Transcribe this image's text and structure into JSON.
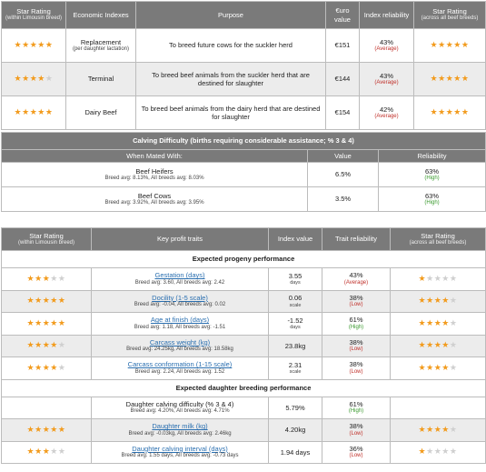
{
  "table1": {
    "headers": {
      "star_rating": "Star Rating",
      "star_rating_sub": "(within Limousin breed)",
      "indexes": "Economic Indexes",
      "purpose": "Purpose",
      "value": "€uro value",
      "reliability": "Index reliability",
      "star_all": "Star Rating",
      "star_all_sub": "(across all beef breeds)"
    },
    "rows": [
      {
        "stars_within": 5,
        "index": "Replacement",
        "index_sub": "(per daughter lactation)",
        "purpose": "To breed future cows for the suckler herd",
        "value": "€151",
        "reliability": "43%",
        "reliability_label": "(Average)",
        "stars_all": 5
      },
      {
        "stars_within": 4,
        "index": "Terminal",
        "index_sub": "",
        "purpose": "To breed beef animals from the suckler herd that are destined for slaughter",
        "value": "€144",
        "reliability": "43%",
        "reliability_label": "(Average)",
        "stars_all": 5
      },
      {
        "stars_within": 5,
        "index": "Dairy Beef",
        "index_sub": "",
        "purpose": "To breed beef animals from the dairy herd that are destined for slaughter",
        "value": "€154",
        "reliability": "42%",
        "reliability_label": "(Average)",
        "stars_all": 5
      }
    ]
  },
  "table2": {
    "title": "Calving Difficulty (births requiring considerable assistance; % 3 & 4)",
    "headers": {
      "mated": "When Mated With:",
      "value": "Value",
      "reliability": "Reliability"
    },
    "rows": [
      {
        "label": "Beef Heifers",
        "sub": "Breed avg: 8.13%, All breeds avg: 8.03%",
        "value": "6.5%",
        "reliability": "63%",
        "reliability_label": "(High)"
      },
      {
        "label": "Beef Cows",
        "sub": "Breed avg: 3.92%, All breeds avg: 3.95%",
        "value": "3.5%",
        "reliability": "63%",
        "reliability_label": "(High)"
      }
    ]
  },
  "table3": {
    "headers": {
      "star_rating": "Star Rating",
      "star_rating_sub": "(within Limousin breed)",
      "traits": "Key profit traits",
      "value": "Index value",
      "reliability": "Trait reliability",
      "star_all": "Star Rating",
      "star_all_sub": "(across all beef breeds)"
    },
    "section_progeny": "Expected progeny performance",
    "section_daughter": "Expected daughter breeding performance",
    "progeny_rows": [
      {
        "stars_within": 3,
        "trait": "Gestation (days)",
        "link": true,
        "sub": "Breed avg: 3.60, All breeds avg: 2.42",
        "value": "3.55",
        "unit": "days",
        "reliability": "43%",
        "reliability_label": "(Average)",
        "rel_class": "avg",
        "stars_all": 1
      },
      {
        "stars_within": 5,
        "trait": "Docility (1-5 scale)",
        "link": true,
        "sub": "Breed avg: -0.04, All breeds avg: 0.02",
        "value": "0.06",
        "unit": "scale",
        "reliability": "38%",
        "reliability_label": "(Low)",
        "rel_class": "low",
        "stars_all": 4
      },
      {
        "stars_within": 5,
        "trait": "Age at finish (days)",
        "link": true,
        "sub": "Breed avg: 1.18, All breeds avg: -1.51",
        "value": "-1.52",
        "unit": "days",
        "reliability": "61%",
        "reliability_label": "(High)",
        "rel_class": "high",
        "stars_all": 4
      },
      {
        "stars_within": 4,
        "trait": "Carcass weight (kg)",
        "link": true,
        "sub": "Breed avg: 24.25kg, All breeds avg: 18.58kg",
        "value": "23.8kg",
        "unit": "",
        "reliability": "38%",
        "reliability_label": "(Low)",
        "rel_class": "low",
        "stars_all": 4
      },
      {
        "stars_within": 4,
        "trait": "Carcass conformation (1-15 scale)",
        "link": true,
        "sub": "Breed avg: 2.24, All breeds avg: 1.52",
        "value": "2.31",
        "unit": "scale",
        "reliability": "38%",
        "reliability_label": "(Low)",
        "rel_class": "low",
        "stars_all": 4
      }
    ],
    "daughter_rows": [
      {
        "stars_within": 0,
        "trait": "Daughter calving difficulty (% 3 & 4)",
        "link": false,
        "sub": "Breed avg: 4.20%, All breeds avg: 4.71%",
        "value": "5.79%",
        "unit": "",
        "reliability": "61%",
        "reliability_label": "(High)",
        "rel_class": "high",
        "stars_all": 0
      },
      {
        "stars_within": 5,
        "trait": "Daughter milk (kg)",
        "link": true,
        "sub": "Breed avg: -0.03kg, All breeds avg: 2.46kg",
        "value": "4.20kg",
        "unit": "",
        "reliability": "38%",
        "reliability_label": "(Low)",
        "rel_class": "low",
        "stars_all": 4
      },
      {
        "stars_within": 3,
        "trait": "Daughter calving interval (days)",
        "link": true,
        "sub": "Breed avg: 1.55 days, All breeds avg: -0.73 days",
        "value": "1.94 days",
        "unit": "",
        "reliability": "36%",
        "reliability_label": "(Low)",
        "rel_class": "low",
        "stars_all": 1
      }
    ]
  },
  "colors": {
    "star_on": "#f29b1d",
    "star_off": "#cfcfcf",
    "header_bg": "#7a7a7a",
    "link": "#2a6fb0",
    "high": "#3a9a2e",
    "low": "#c0302a"
  },
  "icons": {
    "star": "star-icon"
  }
}
